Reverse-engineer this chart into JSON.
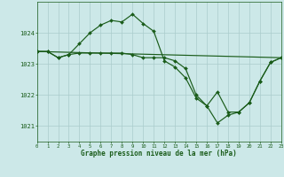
{
  "xlabel": "Graphe pression niveau de la mer (hPa)",
  "bg_color": "#cce8e8",
  "grid_color": "#aacccc",
  "line_color": "#1a5c1a",
  "xlim": [
    0,
    23
  ],
  "ylim": [
    1020.5,
    1025.0
  ],
  "yticks": [
    1021,
    1022,
    1023,
    1024
  ],
  "xticks": [
    0,
    1,
    2,
    3,
    4,
    5,
    6,
    7,
    8,
    9,
    10,
    11,
    12,
    13,
    14,
    15,
    16,
    17,
    18,
    19,
    20,
    21,
    22,
    23
  ],
  "series1_x": [
    0,
    1,
    2,
    3,
    4,
    5,
    6,
    7,
    8,
    9,
    10,
    11,
    12,
    13,
    14,
    15,
    16,
    17,
    18,
    19,
    20,
    21,
    22,
    23
  ],
  "series1_y": [
    1023.4,
    1023.4,
    1023.2,
    1023.3,
    1023.65,
    1024.0,
    1024.25,
    1024.4,
    1024.35,
    1024.6,
    1024.3,
    1024.05,
    1023.1,
    1022.9,
    1022.55,
    1021.9,
    1021.65,
    1021.1,
    1021.35,
    1021.45,
    1021.75,
    1022.45,
    1023.05,
    1023.2
  ],
  "series2_x": [
    0,
    1,
    2,
    3,
    4,
    5,
    6,
    7,
    8,
    9,
    10,
    11,
    12,
    13,
    14,
    15,
    16,
    17,
    18,
    19,
    20,
    21,
    22,
    23
  ],
  "series2_y": [
    1023.4,
    1023.4,
    1023.2,
    1023.3,
    1023.35,
    1023.35,
    1023.35,
    1023.35,
    1023.35,
    1023.3,
    1023.2,
    1023.2,
    1023.2,
    1023.1,
    1022.85,
    1022.0,
    1021.65,
    1022.1,
    1021.45,
    1021.45,
    1021.75,
    1022.45,
    1023.05,
    1023.2
  ],
  "series3_x": [
    0,
    23
  ],
  "series3_y": [
    1023.4,
    1023.2
  ]
}
